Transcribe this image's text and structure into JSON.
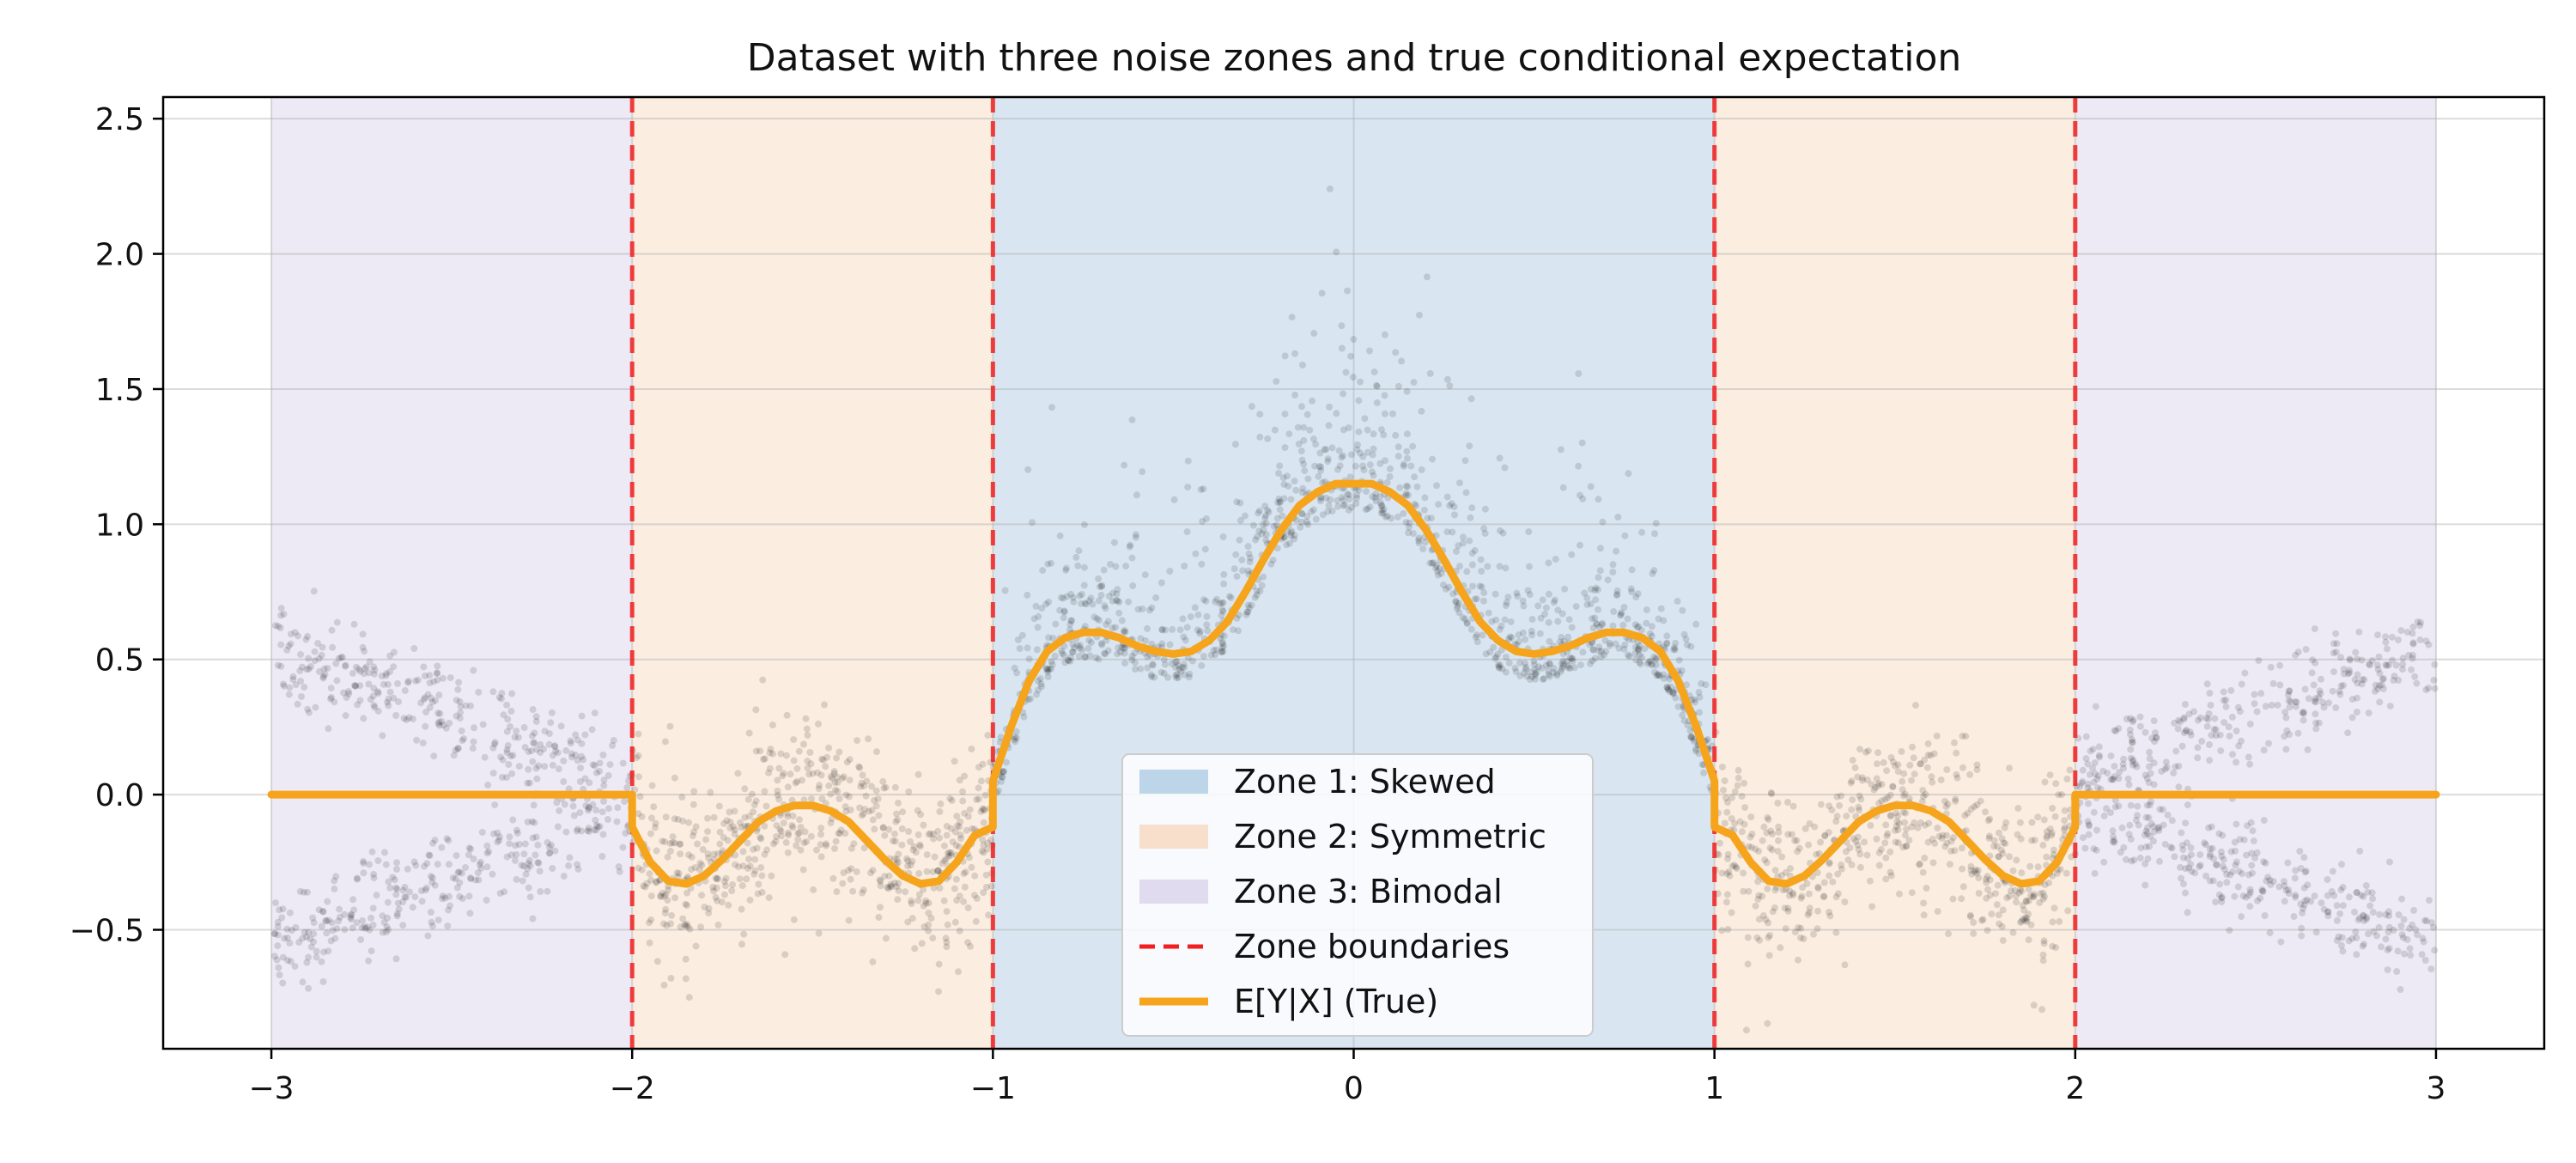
{
  "chart_data": {
    "type": "scatter",
    "title": "Dataset with three noise zones and true conditional expectation",
    "xlabel": "",
    "ylabel": "",
    "xlim": [
      -3.3,
      3.3
    ],
    "ylim": [
      -0.94,
      2.58
    ],
    "x_ticks": [
      -3,
      -2,
      -1,
      0,
      1,
      2,
      3
    ],
    "x_tick_labels": [
      "−3",
      "−2",
      "−1",
      "0",
      "1",
      "2",
      "3"
    ],
    "y_ticks": [
      -0.5,
      0.0,
      0.5,
      1.0,
      1.5,
      2.0,
      2.5
    ],
    "y_tick_labels": [
      "−0.5",
      "0.0",
      "0.5",
      "1.0",
      "1.5",
      "2.0",
      "2.5"
    ],
    "grid": true,
    "legend_position": "bottom-center",
    "zones": [
      {
        "name": "Zone 1: Skewed",
        "x_ranges": [
          [
            -1,
            1
          ]
        ],
        "color": "#aac8e2"
      },
      {
        "name": "Zone 2: Symmetric",
        "x_ranges": [
          [
            -2,
            -1
          ],
          [
            1,
            2
          ]
        ],
        "color": "#f7d6bb"
      },
      {
        "name": "Zone 3: Bimodal",
        "x_ranges": [
          [
            -3,
            -2
          ],
          [
            2,
            3
          ]
        ],
        "color": "#d8d0e8"
      }
    ],
    "boundaries": {
      "name": "Zone boundaries",
      "x": [
        -2,
        -1,
        1,
        2
      ],
      "color": "#f02020"
    },
    "expectation": {
      "name": "E[Y|X] (True)",
      "color": "#f5a41c",
      "x": [
        -3.0,
        -2.0,
        -2.0,
        -1.95,
        -1.9,
        -1.85,
        -1.8,
        -1.75,
        -1.7,
        -1.65,
        -1.6,
        -1.55,
        -1.5,
        -1.45,
        -1.4,
        -1.35,
        -1.3,
        -1.25,
        -1.2,
        -1.15,
        -1.1,
        -1.05,
        -1.0,
        -1.0,
        -0.95,
        -0.9,
        -0.85,
        -0.8,
        -0.75,
        -0.7,
        -0.65,
        -0.6,
        -0.55,
        -0.5,
        -0.45,
        -0.4,
        -0.35,
        -0.3,
        -0.25,
        -0.2,
        -0.15,
        -0.1,
        -0.05,
        0.0,
        0.05,
        0.1,
        0.15,
        0.2,
        0.25,
        0.3,
        0.35,
        0.4,
        0.45,
        0.5,
        0.55,
        0.6,
        0.65,
        0.7,
        0.75,
        0.8,
        0.85,
        0.9,
        0.95,
        1.0,
        1.0,
        1.05,
        1.1,
        1.15,
        1.2,
        1.25,
        1.3,
        1.35,
        1.4,
        1.45,
        1.5,
        1.55,
        1.6,
        1.65,
        1.7,
        1.75,
        1.8,
        1.85,
        1.9,
        1.95,
        2.0,
        2.0,
        3.0
      ],
      "y": [
        0.0,
        0.0,
        -0.12,
        -0.25,
        -0.32,
        -0.33,
        -0.3,
        -0.24,
        -0.17,
        -0.1,
        -0.06,
        -0.04,
        -0.04,
        -0.06,
        -0.1,
        -0.17,
        -0.24,
        -0.3,
        -0.33,
        -0.32,
        -0.25,
        -0.15,
        -0.12,
        0.05,
        0.25,
        0.42,
        0.53,
        0.58,
        0.6,
        0.6,
        0.58,
        0.55,
        0.53,
        0.52,
        0.53,
        0.57,
        0.64,
        0.75,
        0.87,
        0.98,
        1.07,
        1.12,
        1.15,
        1.15,
        1.15,
        1.12,
        1.07,
        0.98,
        0.87,
        0.75,
        0.64,
        0.57,
        0.53,
        0.52,
        0.53,
        0.55,
        0.58,
        0.6,
        0.6,
        0.58,
        0.53,
        0.42,
        0.25,
        0.05,
        -0.12,
        -0.15,
        -0.25,
        -0.32,
        -0.33,
        -0.3,
        -0.24,
        -0.17,
        -0.1,
        -0.06,
        -0.04,
        -0.04,
        -0.06,
        -0.1,
        -0.17,
        -0.24,
        -0.3,
        -0.33,
        -0.32,
        -0.25,
        -0.12,
        0.0,
        0.0
      ]
    },
    "scatter": {
      "name": "Samples",
      "color": "#000000",
      "note_points_generated": true
    },
    "legend": [
      {
        "label": "Zone 1: Skewed",
        "kind": "patch",
        "color": "#aac8e2"
      },
      {
        "label": "Zone 2: Symmetric",
        "kind": "patch",
        "color": "#f7d6bb"
      },
      {
        "label": "Zone 3: Bimodal",
        "kind": "patch",
        "color": "#d8d0e8"
      },
      {
        "label": "Zone boundaries",
        "kind": "dashed-line",
        "color": "#f02020"
      },
      {
        "label": "E[Y|X] (True)",
        "kind": "line",
        "color": "#f5a41c"
      }
    ]
  }
}
